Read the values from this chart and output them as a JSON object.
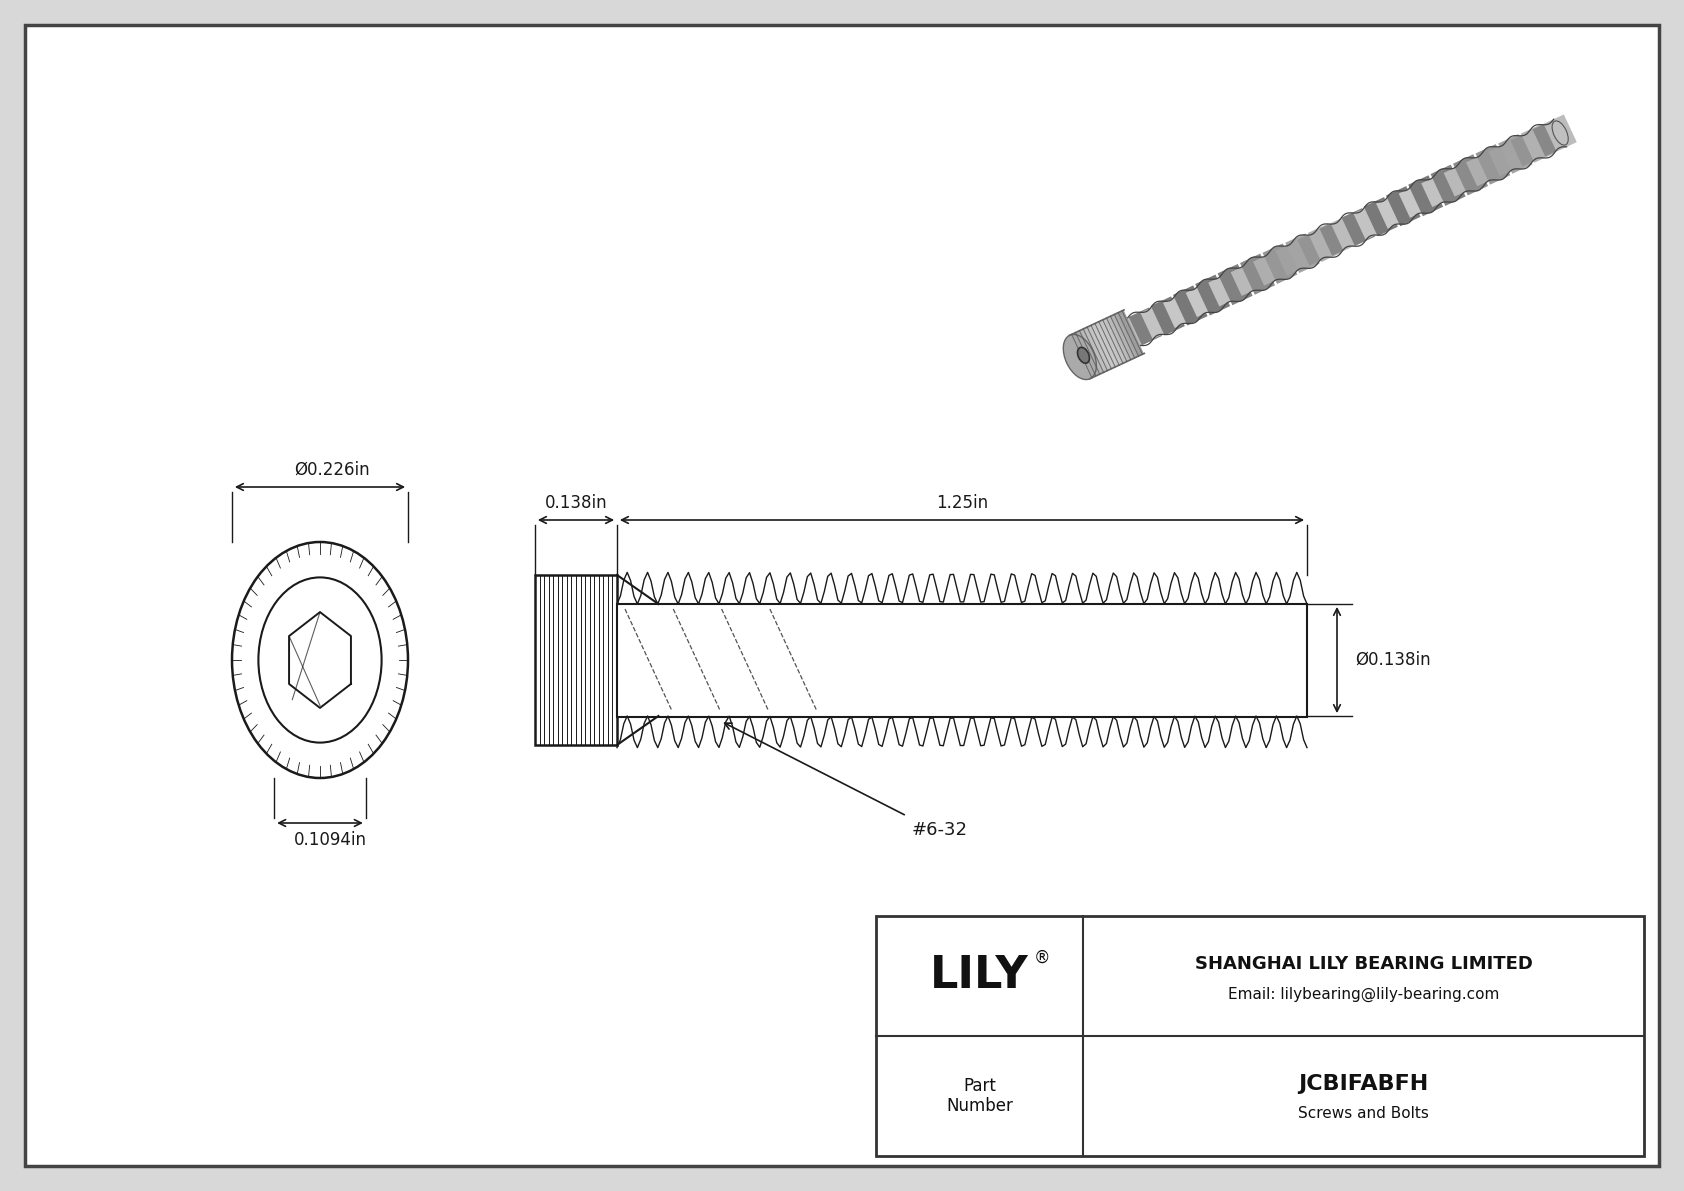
{
  "bg_color": "#d8d8d8",
  "drawing_bg": "#ffffff",
  "border_color": "#333333",
  "line_color": "#1a1a1a",
  "dim_color": "#1a1a1a",
  "title": "JCBIFABFH",
  "subtitle": "Screws and Bolts",
  "company": "SHANGHAI LILY BEARING LIMITED",
  "email": "Email: lilybearing@lily-bearing.com",
  "lily_text": "LILY",
  "part_label": "Part\nNumber",
  "dim_head_diameter": "Ø0.226in",
  "dim_head_height": "0.1094in",
  "dim_shank_length": "1.25in",
  "dim_shank_width": "0.138in",
  "dim_thread_label": "Ø0.138in",
  "thread_label": "#6-32",
  "photo_screw_color_head": "#aaaaaa",
  "photo_screw_color_shank": "#bbbbbb",
  "photo_screw_color_thread": "#999999",
  "photo_screw_color_dark": "#666666",
  "photo_screw_highlight": "#e0e0e0"
}
